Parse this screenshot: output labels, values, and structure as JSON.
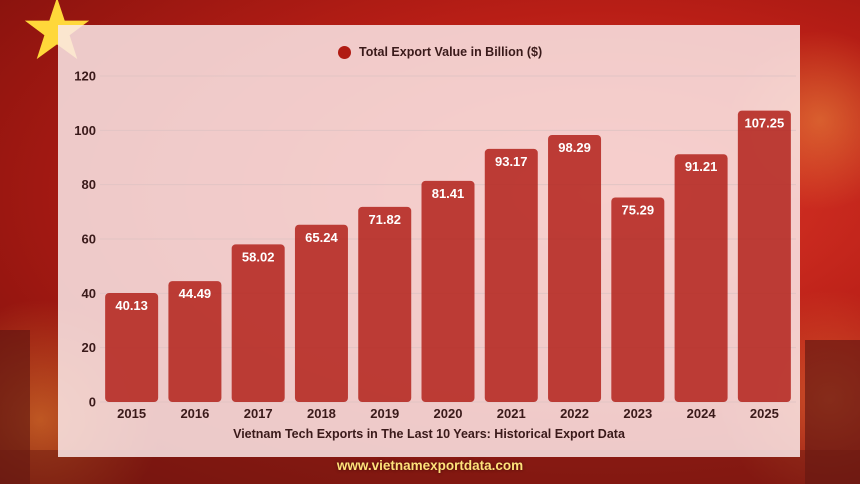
{
  "chart_data": {
    "type": "bar",
    "title": "Vietnam Tech Exports in The Last 10 Years: Historical Export Data",
    "xlabel": "Vietnam Tech Exports in The Last 10 Years: Historical Export Data",
    "ylabel": "",
    "legend": "top-center",
    "grid": true,
    "ylim": [
      0,
      120
    ],
    "yticks": [
      0,
      20,
      40,
      60,
      80,
      100,
      120
    ],
    "categories": [
      "2015",
      "2016",
      "2017",
      "2018",
      "2019",
      "2020",
      "2021",
      "2022",
      "2023",
      "2024",
      "2025"
    ],
    "series": [
      {
        "name": "Total Export Value in Billion ($)",
        "values": [
          40.13,
          44.49,
          58.02,
          65.24,
          71.82,
          81.41,
          93.17,
          98.29,
          75.29,
          91.21,
          107.25
        ]
      }
    ],
    "colors": {
      "bar": "#b01b13",
      "bar_label": "#ffffff",
      "text": "#3a1a1a",
      "grid": "#e2c4c4"
    }
  },
  "footer": {
    "url": "www.vietnamexportdata.com"
  }
}
